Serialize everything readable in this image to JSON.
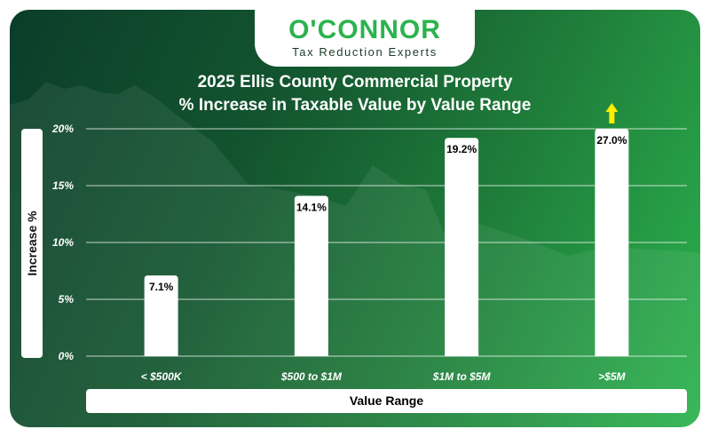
{
  "brand": {
    "name": "O'CONNOR",
    "tagline": "Tax Reduction Experts"
  },
  "chart_data": {
    "type": "bar",
    "title": "2025 Ellis County Commercial Property",
    "subtitle": "% Increase in Taxable Value by Value Range",
    "xlabel": "Value Range",
    "ylabel": "Increase %",
    "categories": [
      "< $500K",
      "$500 to $1M",
      "$1M to $5M",
      ">$5M"
    ],
    "values": [
      7.1,
      14.1,
      19.2,
      27.0
    ],
    "data_labels": [
      "7.1%",
      "14.1%",
      "19.2%",
      "27.0%"
    ],
    "ylim": [
      0,
      20
    ],
    "yticks": [
      0,
      5,
      10,
      15,
      20
    ],
    "ytick_labels": [
      "0%",
      "5%",
      "10%",
      "15%",
      "20%"
    ],
    "grid": true,
    "annotations": [
      {
        "type": "up-arrow",
        "category": ">$5M",
        "meaning": "value exceeds axis maximum",
        "color": "#ffee00"
      }
    ],
    "colors": {
      "bar": "#ffffff",
      "grid": "#ffffff",
      "background_start": "#0b3d2a",
      "background_end": "#2bb34e"
    }
  }
}
